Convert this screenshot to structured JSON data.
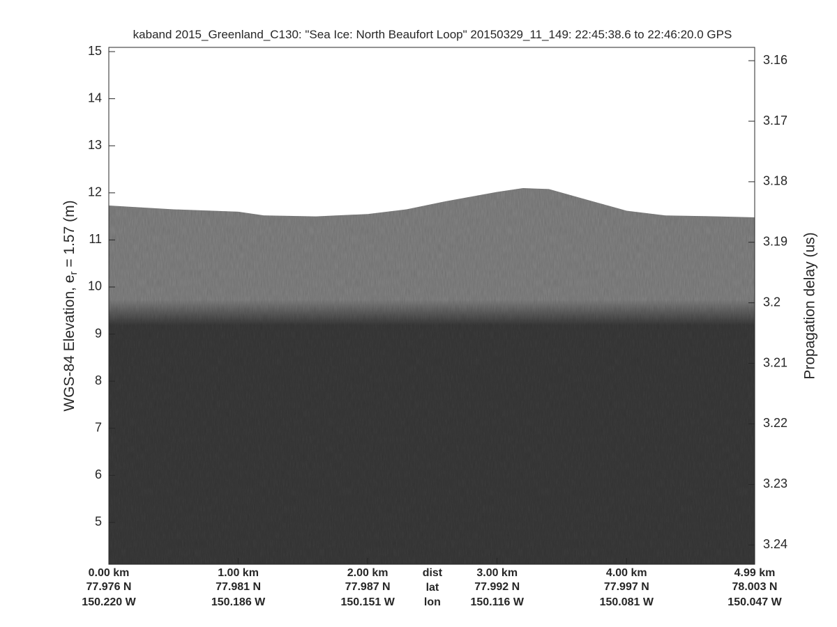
{
  "chart_data": {
    "type": "echogram",
    "title": "kaband 2015_Greenland_C130: \"Sea Ice: North Beaufort Loop\"  20150329_11_149: 22:45:38.6 to 22:46:20.0 GPS",
    "ylabel": {
      "text": "WGS-84 Elevation, e",
      "subscript": "r",
      "suffix": " = 1.57 (m)"
    },
    "y2label": "Propagation delay (us)",
    "xlim": [
      0,
      4.99
    ],
    "xticks": [
      {
        "value": 0,
        "label": "0.00 km"
      },
      {
        "value": 1,
        "label": "1.00 km"
      },
      {
        "value": 2,
        "label": "2.00 km"
      },
      {
        "value": 3,
        "label": "3.00 km"
      },
      {
        "value": 4,
        "label": "4.00 km"
      },
      {
        "value": 4.99,
        "label": "4.99 km"
      }
    ],
    "xticks_lat": [
      "77.976 N",
      "77.981 N",
      "77.987 N",
      "77.992 N",
      "77.997 N",
      "78.003 N"
    ],
    "xticks_lon": [
      "150.220 W",
      "150.186 W",
      "150.151 W",
      "150.116 W",
      "150.081 W",
      "150.047 W"
    ],
    "row_names": {
      "value": 2.5,
      "labels": [
        "dist",
        "lat",
        "lon"
      ]
    },
    "ylim": [
      4.11,
      15.09
    ],
    "yticks": [
      5,
      6,
      7,
      8,
      9,
      10,
      11,
      12,
      13,
      14,
      15
    ],
    "y2lim": [
      3.1578,
      3.2432
    ],
    "y2_reversed": true,
    "y2ticks": [
      3.16,
      3.17,
      3.18,
      3.19,
      3.2,
      3.21,
      3.22,
      3.23,
      3.24
    ],
    "surface": {
      "x": [
        0,
        0.5,
        1.0,
        1.2,
        1.6,
        2.0,
        2.3,
        2.6,
        3.0,
        3.2,
        3.4,
        3.7,
        4.0,
        4.3,
        4.7,
        4.99
      ],
      "values": [
        11.73,
        11.65,
        11.6,
        11.52,
        11.5,
        11.55,
        11.65,
        11.82,
        12.02,
        12.1,
        12.08,
        11.85,
        11.62,
        11.52,
        11.5,
        11.48
      ]
    },
    "layer_boundary": 9.4,
    "colors": {
      "upper": "#858585",
      "lower": "#3c3c3c"
    }
  }
}
